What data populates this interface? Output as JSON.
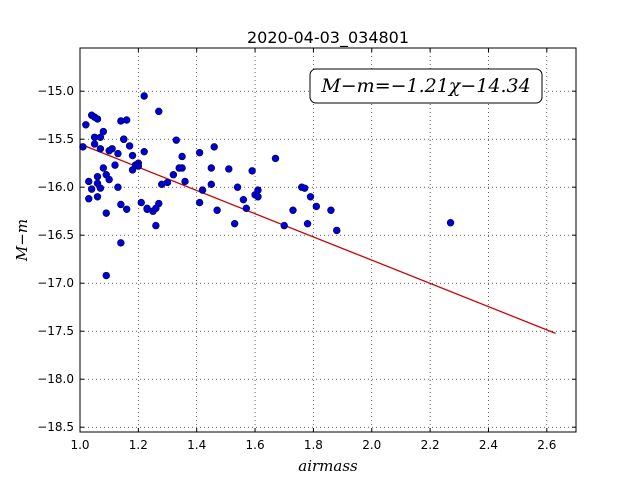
{
  "chart_data": {
    "type": "scatter",
    "title": "2020-04-03_034801",
    "xlabel": "airmass",
    "ylabel": "M−m",
    "xlim": [
      1.0,
      2.7
    ],
    "ylim": [
      -18.55,
      -14.55
    ],
    "y_inverted": true,
    "grid": true,
    "x_ticks": [
      "1.0",
      "1.2",
      "1.4",
      "1.6",
      "1.8",
      "2.0",
      "2.2",
      "2.4",
      "2.6"
    ],
    "y_ticks": [
      "−15.0",
      "−15.5",
      "−16.0",
      "−16.5",
      "−17.0",
      "−17.5",
      "−18.0",
      "−18.5"
    ],
    "annotation": "M−m=−1.21χ−14.34",
    "colors": {
      "points": "#0000cc",
      "fit_line": "#cc0000"
    },
    "fit_line": {
      "slope": -1.21,
      "intercept": -14.34,
      "x_range": [
        1.0,
        2.63
      ]
    },
    "series": [
      {
        "x": [
          1.01,
          1.02,
          1.03,
          1.04,
          1.04,
          1.05,
          1.05,
          1.06,
          1.06,
          1.07,
          1.06,
          1.07,
          1.08,
          1.08,
          1.09,
          1.09,
          1.1,
          1.11,
          1.12,
          1.13,
          1.13,
          1.14,
          1.15,
          1.15,
          1.16,
          1.17,
          1.18,
          1.18,
          1.19,
          1.2,
          1.21,
          1.22,
          1.23,
          1.25,
          1.26,
          1.27,
          1.27,
          1.28,
          1.3,
          1.32,
          1.34,
          1.35,
          1.36,
          1.41,
          1.41,
          1.42,
          1.45,
          1.46,
          1.47,
          1.51,
          1.53,
          1.54,
          1.56,
          1.57,
          1.59,
          1.6,
          1.61,
          1.67,
          1.7,
          1.73,
          1.76,
          1.77,
          1.78,
          1.79,
          1.81,
          1.86,
          1.88,
          2.27,
          1.03,
          1.05,
          1.07,
          1.09,
          1.14,
          1.16,
          1.22,
          1.26,
          1.33,
          1.35,
          1.45,
          1.61,
          1.06,
          1.1,
          1.2,
          1.23,
          1.14
        ],
        "y": [
          -15.58,
          -15.35,
          -15.94,
          -16.02,
          -15.25,
          -15.55,
          -15.48,
          -15.89,
          -15.96,
          -16.01,
          -16.1,
          -15.6,
          -15.42,
          -15.8,
          -15.87,
          -16.27,
          -15.92,
          -15.6,
          -15.77,
          -16.0,
          -15.65,
          -16.18,
          -15.5,
          -15.5,
          -16.23,
          -15.57,
          -15.67,
          -15.82,
          -15.77,
          -15.75,
          -16.16,
          -15.05,
          -16.23,
          -16.25,
          -16.4,
          -16.17,
          -15.21,
          -15.97,
          -15.95,
          -15.87,
          -15.8,
          -15.68,
          -15.94,
          -15.64,
          -16.16,
          -16.03,
          -15.97,
          -15.58,
          -16.24,
          -15.81,
          -16.38,
          -16.0,
          -16.13,
          -16.22,
          -15.83,
          -16.08,
          -16.1,
          -15.7,
          -16.4,
          -16.24,
          -16.0,
          -16.01,
          -16.38,
          -16.1,
          -16.2,
          -16.24,
          -16.45,
          -16.37,
          -16.12,
          -15.27,
          -15.48,
          -16.92,
          -16.58,
          -15.3,
          -15.63,
          -16.22,
          -15.51,
          -15.8,
          -15.8,
          -16.03,
          -15.29,
          -15.62,
          -15.78,
          -16.22,
          -15.31
        ]
      }
    ]
  }
}
